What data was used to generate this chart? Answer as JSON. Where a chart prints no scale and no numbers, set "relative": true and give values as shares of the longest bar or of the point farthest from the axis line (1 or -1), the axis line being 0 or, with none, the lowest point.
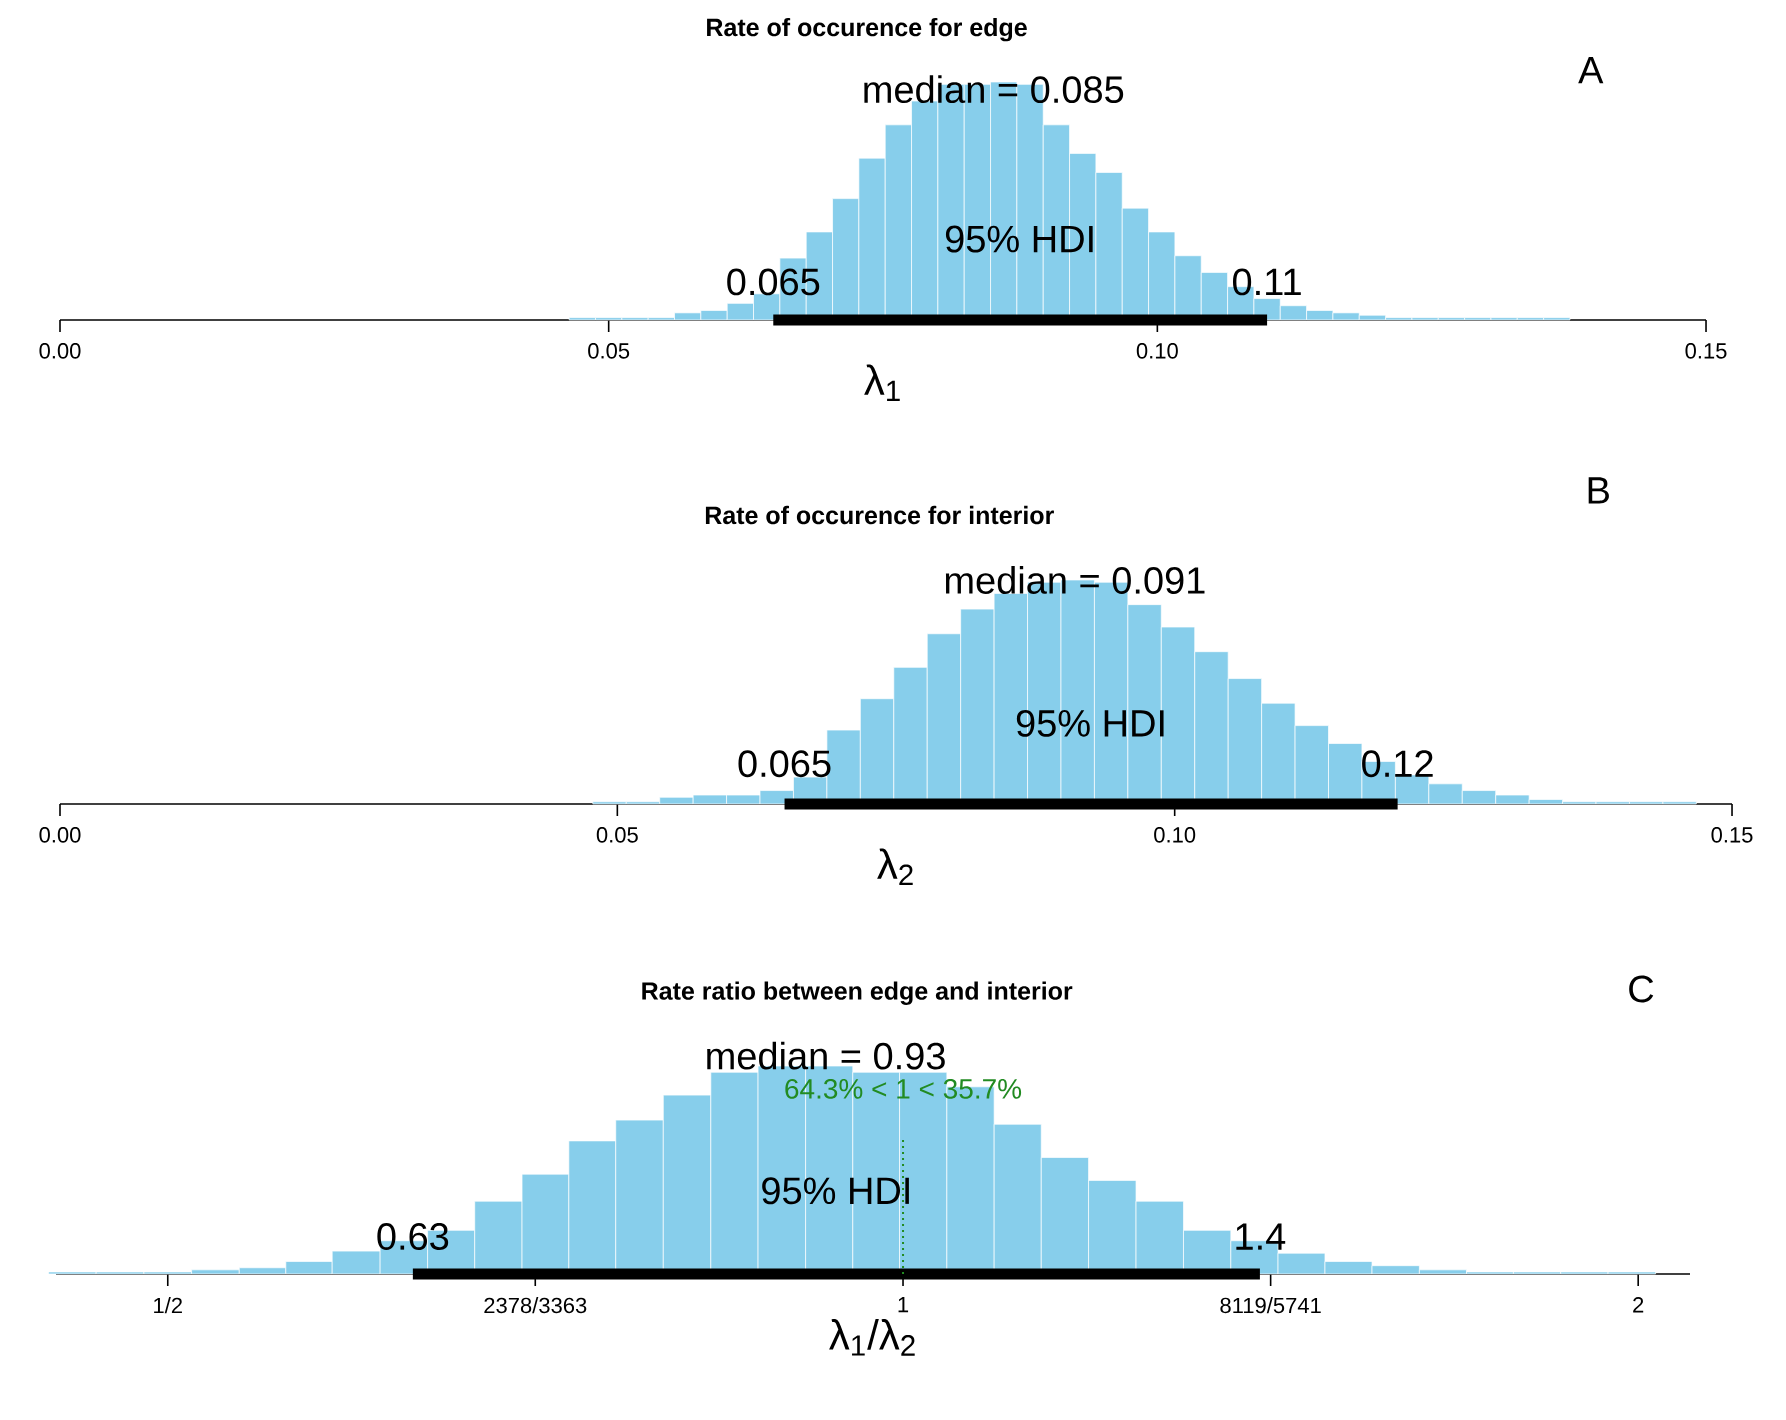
{
  "chart_data": [
    {
      "type": "bar",
      "title": "Rate of occurence for edge",
      "xlabel": "λ$_{1}$",
      "relative": true,
      "tick_labels": "x",
      "x": [
        0.0476,
        0.05,
        0.0524,
        0.0548,
        0.0572,
        0.0596,
        0.062,
        0.0644,
        0.0668,
        0.0692,
        0.0716,
        0.074,
        0.0764,
        0.0788,
        0.0812,
        0.0836,
        0.086,
        0.0884,
        0.0908,
        0.0932,
        0.0956,
        0.098,
        0.1004,
        0.1028,
        0.1052,
        0.1076,
        0.11,
        0.1124,
        0.1148,
        0.1172,
        0.1196,
        0.122,
        0.1244,
        0.1268,
        0.1292,
        0.1316,
        0.134,
        0.1364
      ],
      "series": [
        {
          "type": "bar",
          "color": "#87ceeb",
          "values": [
            0.01,
            0.01,
            0.01,
            0.01,
            0.03,
            0.04,
            0.07,
            0.11,
            0.26,
            0.37,
            0.51,
            0.68,
            0.82,
            0.92,
            0.99,
            0.99,
            1,
            0.99,
            0.82,
            0.7,
            0.62,
            0.47,
            0.37,
            0.27,
            0.2,
            0.14,
            0.09,
            0.06,
            0.04,
            0.03,
            0.02,
            0.01,
            0.01,
            0.01,
            0.01,
            0.01,
            0.01,
            0.01
          ]
        },
        {
          "type": "line",
          "name": "95% HDI",
          "color": "#000000",
          "x": [
            0.065,
            0.11
          ],
          "values": [
            0,
            0
          ]
        }
      ],
      "xlim": [
        0,
        0.15
      ],
      "xticks": [
        {
          "value": 0,
          "label": "0.00"
        },
        {
          "value": 0.05,
          "label": "0.05"
        },
        {
          "value": 0.1,
          "label": "0.10"
        },
        {
          "value": 0.15,
          "label": "0.15"
        }
      ],
      "annotations": [
        "median = 0.085",
        {
          "text": "0.065",
          "x": 0.065,
          "y": 0
        },
        {
          "text": "0.11",
          "x": 0.11,
          "y": 0
        },
        "A"
      ]
    },
    {
      "type": "bar",
      "title": "Rate of occurence for interior",
      "xlabel": "λ$_{2}$",
      "relative": true,
      "tick_labels": "x",
      "x": [
        0.0493,
        0.0523,
        0.0553,
        0.0583,
        0.0613,
        0.0643,
        0.0673,
        0.0703,
        0.0733,
        0.0763,
        0.0793,
        0.0823,
        0.0853,
        0.0883,
        0.0913,
        0.0943,
        0.0973,
        0.1003,
        0.1033,
        0.1063,
        0.1093,
        0.1123,
        0.1153,
        0.1183,
        0.1213,
        0.1243,
        0.1273,
        0.1303,
        0.1333,
        0.1363,
        0.1393,
        0.1423,
        0.1453
      ],
      "series": [
        {
          "type": "bar",
          "color": "#87ceeb",
          "values": [
            0.01,
            0.01,
            0.03,
            0.04,
            0.04,
            0.06,
            0.12,
            0.33,
            0.47,
            0.61,
            0.76,
            0.87,
            0.94,
            0.99,
            1,
            0.99,
            0.89,
            0.79,
            0.68,
            0.56,
            0.45,
            0.35,
            0.27,
            0.19,
            0.13,
            0.09,
            0.06,
            0.04,
            0.02,
            0.01,
            0.01,
            0.01,
            0.01
          ]
        },
        {
          "type": "line",
          "name": "95% HDI",
          "color": "#000000",
          "x": [
            0.065,
            0.12
          ],
          "values": [
            0,
            0
          ]
        }
      ],
      "xlim": [
        0,
        0.15
      ],
      "xticks": [
        {
          "value": 0,
          "label": "0.00"
        },
        {
          "value": 0.05,
          "label": "0.05"
        },
        {
          "value": 0.1,
          "label": "0.10"
        },
        {
          "value": 0.15,
          "label": "0.15"
        }
      ],
      "annotations": [
        "median = 0.091",
        {
          "text": "0.065",
          "x": 0.065,
          "y": 0
        },
        {
          "text": "0.12",
          "x": 0.12,
          "y": 0
        },
        "B"
      ]
    },
    {
      "type": "bar",
      "title": "Rate ratio between edge and interior",
      "xlabel": "λ$_{1}$/λ$_{2}$",
      "relative": true,
      "tick_labels": "x",
      "log": "x",
      "x": [
        0.457,
        0.478,
        0.5,
        0.523,
        0.547,
        0.571,
        0.597,
        0.625,
        0.653,
        0.683,
        0.714,
        0.746,
        0.78,
        0.816,
        0.853,
        0.892,
        0.933,
        0.975,
        1.019,
        1.066,
        1.114,
        1.165,
        1.218,
        1.274,
        1.332,
        1.393,
        1.456,
        1.522,
        1.591,
        1.664,
        1.739,
        1.818,
        1.901,
        1.988
      ],
      "series": [
        {
          "type": "bar",
          "color": "#87ceeb",
          "values": [
            0.01,
            0.01,
            0.01,
            0.02,
            0.03,
            0.06,
            0.11,
            0.16,
            0.21,
            0.35,
            0.48,
            0.64,
            0.74,
            0.86,
            0.97,
            1,
            1,
            0.97,
            0.97,
            0.9,
            0.72,
            0.56,
            0.45,
            0.35,
            0.21,
            0.16,
            0.1,
            0.06,
            0.04,
            0.02,
            0.01,
            0.01,
            0.01,
            0.01
          ]
        },
        {
          "type": "line",
          "name": "95% HDI",
          "color": "#000000",
          "x": [
            0.63,
            1.4
          ],
          "values": [
            0,
            0
          ]
        }
      ],
      "xlim": [
        0.45,
        2.1
      ],
      "xticks": [
        {
          "value": 0.5,
          "label": "1/2"
        },
        {
          "value": 0.7071,
          "label": "2378/3363"
        },
        {
          "value": 1,
          "label": "1"
        },
        {
          "value": 1.4142,
          "label": "8119/5741"
        },
        {
          "value": 2,
          "label": "2"
        }
      ],
      "ref_lines": [
        {
          "axis": "x",
          "value": 1,
          "label": "64.3% < 1 < 35.7%",
          "color": "#228b22",
          "line_style": "dotted"
        }
      ],
      "annotations": [
        "median = 0.93",
        {
          "text": "0.63",
          "x": 0.63,
          "y": 0
        },
        {
          "text": "1.4",
          "x": 1.4,
          "y": 0
        },
        "C"
      ]
    }
  ]
}
